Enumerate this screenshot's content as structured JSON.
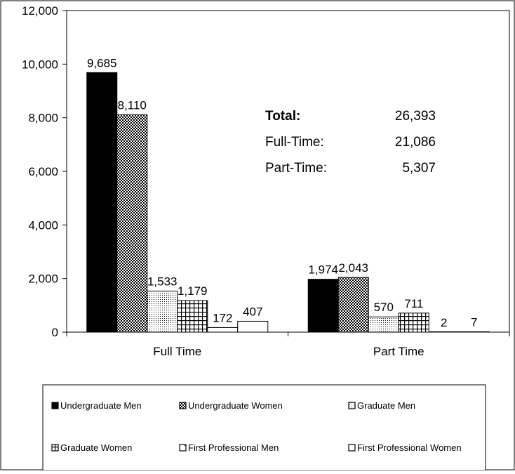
{
  "chart_data": {
    "type": "bar",
    "categories": [
      "Full Time",
      "Part Time"
    ],
    "series": [
      {
        "name": "Undergraduate Men",
        "values": [
          9685,
          1974
        ],
        "labels": [
          "9,685",
          "1,974"
        ],
        "pattern": "solid"
      },
      {
        "name": "Undergraduate Women",
        "values": [
          8110,
          2043
        ],
        "labels": [
          "8,110",
          "2,043"
        ],
        "pattern": "checker"
      },
      {
        "name": "Graduate Men",
        "values": [
          1533,
          570
        ],
        "labels": [
          "1,533",
          "570"
        ],
        "pattern": "dots"
      },
      {
        "name": "Graduate Women",
        "values": [
          1179,
          711
        ],
        "labels": [
          "1,179",
          "711"
        ],
        "pattern": "grid"
      },
      {
        "name": "First Professional Men",
        "values": [
          172,
          2
        ],
        "labels": [
          "172",
          "2"
        ],
        "pattern": "sparse"
      },
      {
        "name": "First Professional Women",
        "values": [
          407,
          7
        ],
        "labels": [
          "407",
          "7"
        ],
        "pattern": "white"
      }
    ],
    "ylim": [
      0,
      12000
    ],
    "yticks": [
      0,
      2000,
      4000,
      6000,
      8000,
      10000,
      12000
    ],
    "ytick_labels": [
      "0",
      "2,000",
      "4,000",
      "6,000",
      "8,000",
      "10,000",
      "12,000"
    ],
    "title": "",
    "xlabel": "",
    "ylabel": "",
    "grid": false,
    "legend_position": "bottom",
    "annotation": {
      "rows": [
        {
          "label": "Total:",
          "value": "26,393",
          "bold": true
        },
        {
          "label": "Full-Time:",
          "value": "21,086",
          "bold": false
        },
        {
          "label": "Part-Time:",
          "value": "5,307",
          "bold": false
        }
      ]
    }
  }
}
